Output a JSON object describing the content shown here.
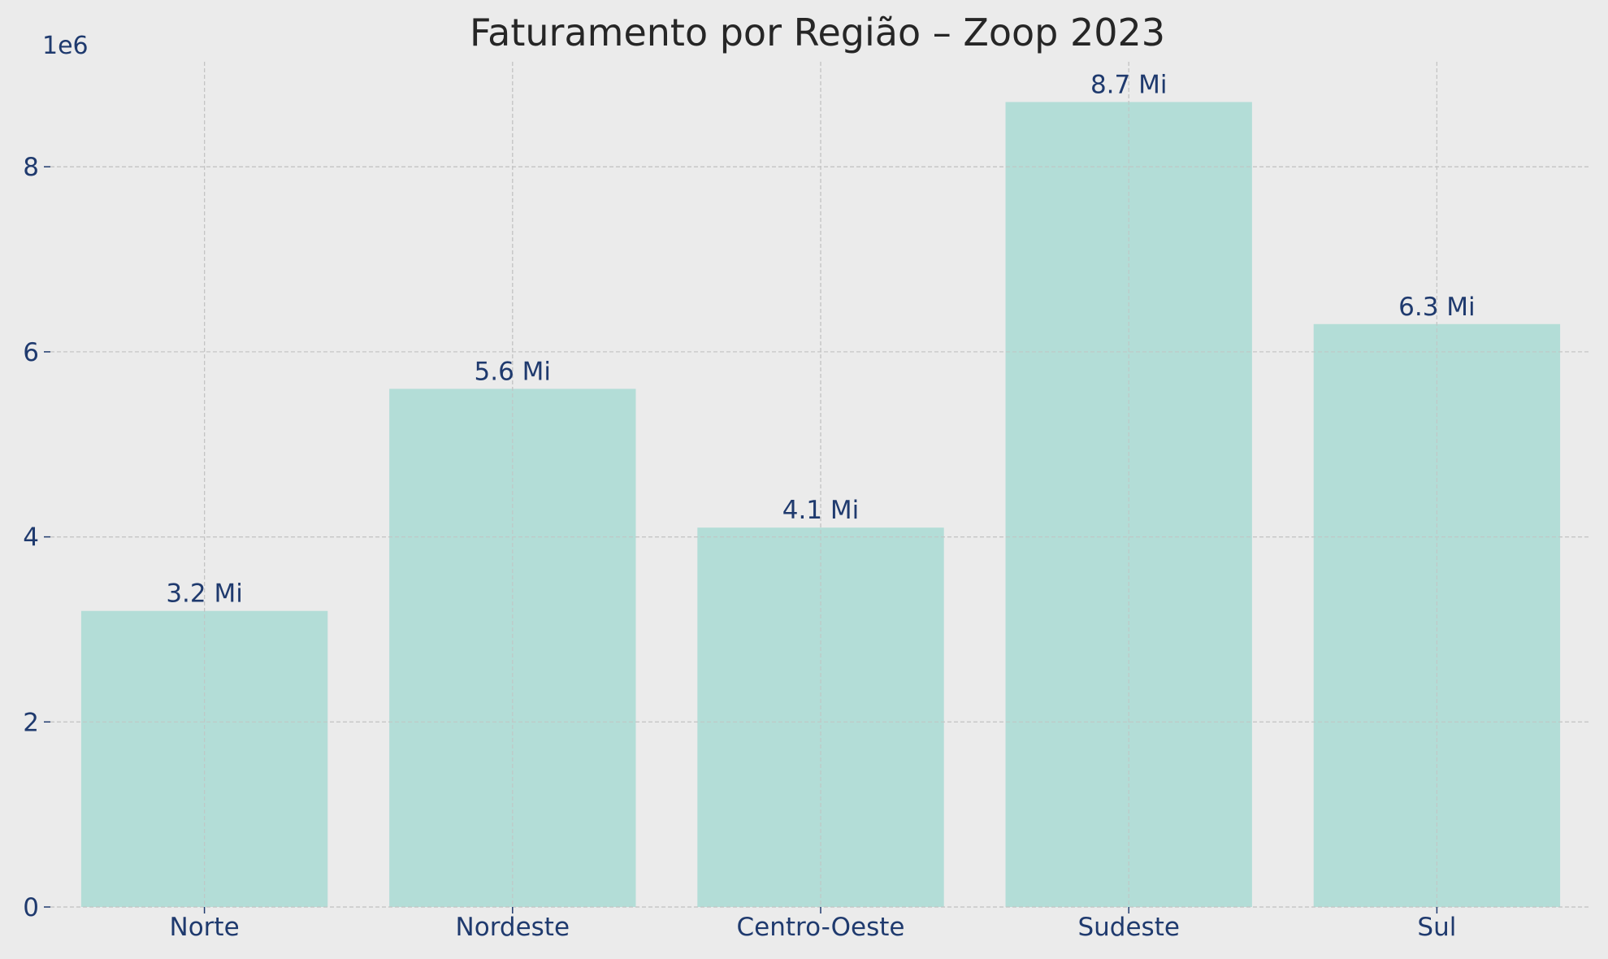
{
  "chart_data": {
    "type": "bar",
    "title": "Faturamento por Região – Zoop 2023",
    "xlabel": "",
    "ylabel": "",
    "y_offset_label": "1e6",
    "categories": [
      "Norte",
      "Nordeste",
      "Centro-Oeste",
      "Sudeste",
      "Sul"
    ],
    "values": [
      3200000,
      5600000,
      4100000,
      8700000,
      6300000
    ],
    "data_labels": [
      "3.2 Mi",
      "5.6 Mi",
      "4.1 Mi",
      "8.7 Mi",
      "6.3 Mi"
    ],
    "ylim": [
      0,
      9135000
    ],
    "yticks": [
      0,
      2000000,
      4000000,
      6000000,
      8000000
    ],
    "ytick_labels": [
      "0",
      "2",
      "4",
      "6",
      "8"
    ],
    "grid": true,
    "legend": "none",
    "colors": {
      "background": "#ebebeb",
      "bar": "#aedbd5",
      "grid": "#c4c4c4",
      "text": "#1f3a6e",
      "title": "#262626"
    }
  }
}
